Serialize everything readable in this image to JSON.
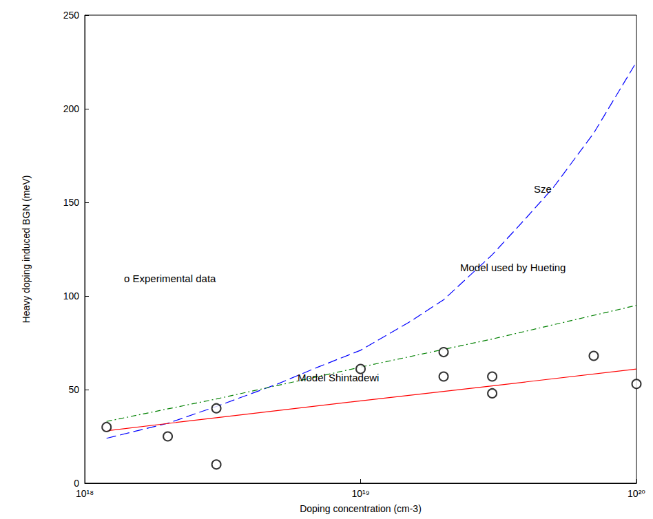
{
  "chart_data": {
    "type": "line",
    "x_label": "Doping concentration (cm-3)",
    "y_label": "Heavy doping induced BGN (meV)",
    "log": "x",
    "grid": false,
    "xlim": [
      1e+18,
      1e+20
    ],
    "xticks": [
      {
        "value": 1e+18,
        "label": "10¹⁸"
      },
      {
        "value": 1e+19,
        "label": "10¹⁹"
      },
      {
        "value": 1e+20,
        "label": "10²⁰"
      }
    ],
    "ylim": [
      0,
      250
    ],
    "yticks": [
      0,
      50,
      100,
      150,
      200,
      250
    ],
    "series": [
      {
        "type": "scatter",
        "marker": "circle",
        "color": "#000000",
        "x": [
          1.2e+18,
          2e+18,
          3e+18,
          3e+18,
          1e+19,
          2e+19,
          2e+19,
          3e+19,
          3e+19,
          7e+19,
          1e+20
        ],
        "values": [
          30,
          25,
          10,
          40,
          61,
          70,
          57,
          57,
          48,
          68,
          53
        ]
      },
      {
        "type": "line",
        "line_style": "dashed",
        "color": "#0000ff",
        "x": [
          1.2e+18,
          2e+18,
          3e+18,
          5e+18,
          7e+18,
          1e+19,
          1.5e+19,
          2e+19,
          3e+19,
          4e+19,
          5e+19,
          7e+19,
          1e+20
        ],
        "values": [
          24,
          32,
          41,
          53,
          62,
          71,
          86,
          98,
          122,
          142,
          158,
          187,
          225
        ]
      },
      {
        "type": "line",
        "line_style": "dashdot",
        "color": "#008000",
        "x": [
          1.2e+18,
          3e+18,
          1e+19,
          3e+19,
          1e+20
        ],
        "values": [
          33,
          45,
          62,
          77,
          95
        ]
      },
      {
        "type": "line",
        "line_style": "solid",
        "color": "#ff0000",
        "x": [
          1.2e+18,
          3e+18,
          1e+19,
          3e+19,
          1e+20
        ],
        "values": [
          28,
          35,
          44,
          52,
          61
        ]
      }
    ],
    "annotations": [
      {
        "text": "o Experimental data"
      },
      {
        "text": "Sze"
      },
      {
        "text": "Model used by Hueting"
      },
      {
        "text": "Model Shintadewi"
      }
    ]
  }
}
